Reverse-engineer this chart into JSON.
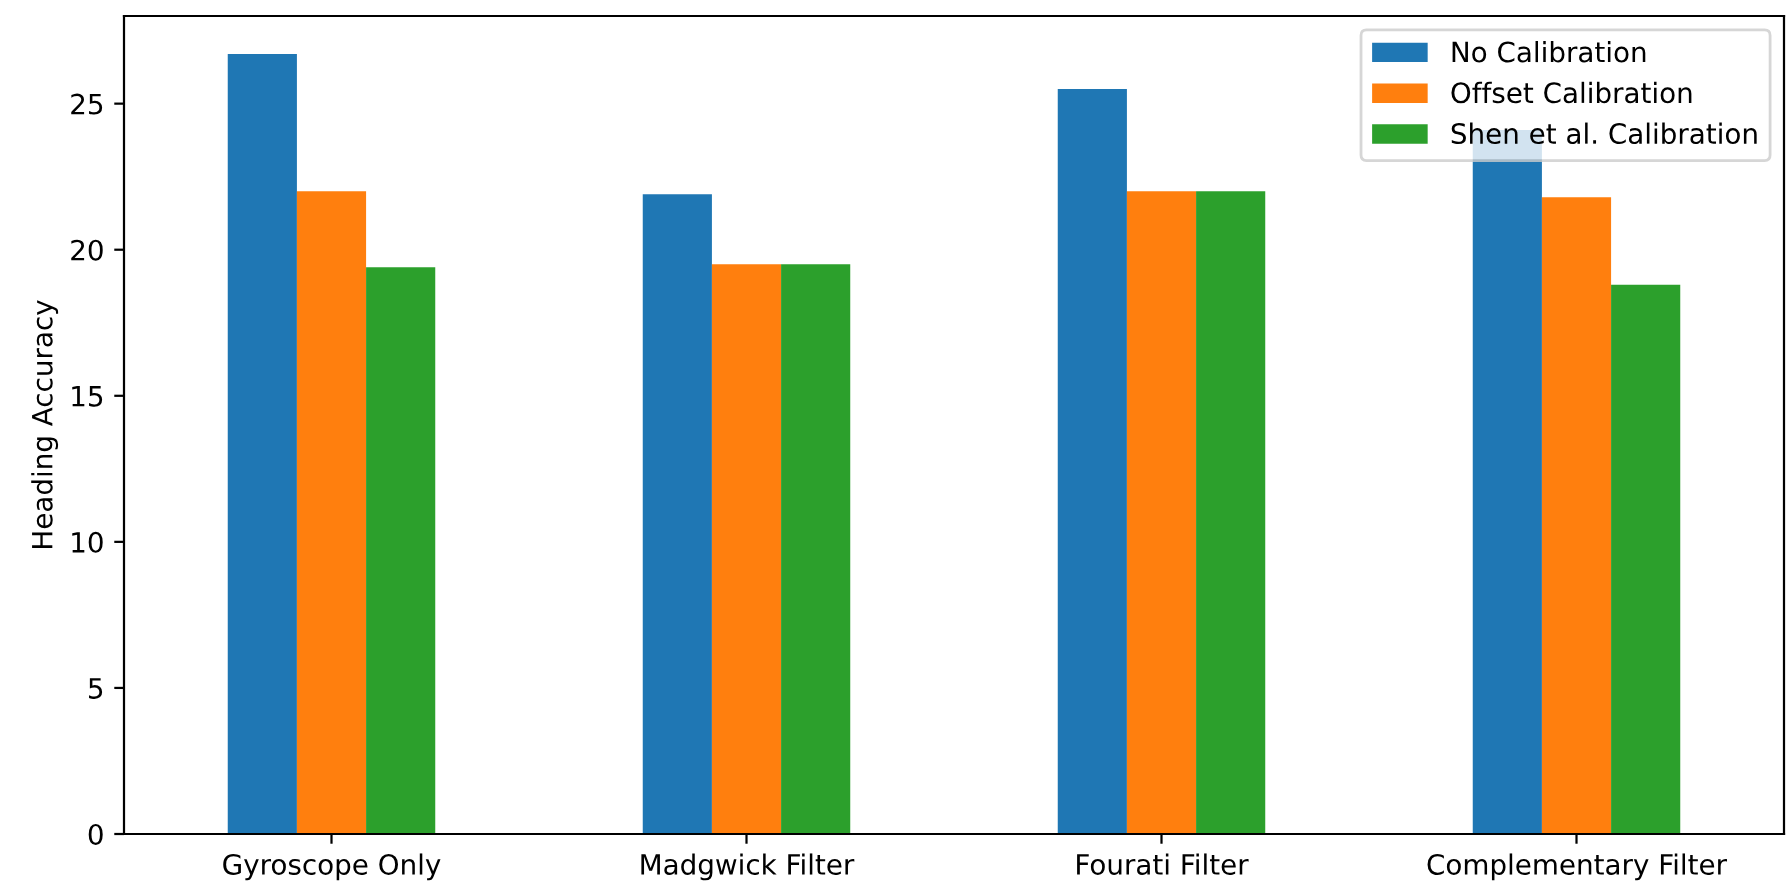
{
  "chart_data": {
    "type": "bar",
    "ylabel": "Heading Accuracy",
    "categories": [
      "Gyroscope Only",
      "Madgwick Filter",
      "Fourati Filter",
      "Complementary Filter"
    ],
    "series": [
      {
        "name": "No Calibration",
        "color": "#1f77b4",
        "values": [
          26.7,
          21.9,
          25.5,
          24.1
        ]
      },
      {
        "name": "Offset Calibration",
        "color": "#ff7f0e",
        "values": [
          22.0,
          19.5,
          22.0,
          21.8
        ]
      },
      {
        "name": "Shen et al. Calibration",
        "color": "#2ca02c",
        "values": [
          19.4,
          19.5,
          22.0,
          18.8
        ]
      }
    ],
    "ylim": [
      0,
      28
    ],
    "yticks": [
      0,
      5,
      10,
      15,
      20,
      25
    ],
    "grid": false,
    "legend": "top right"
  }
}
